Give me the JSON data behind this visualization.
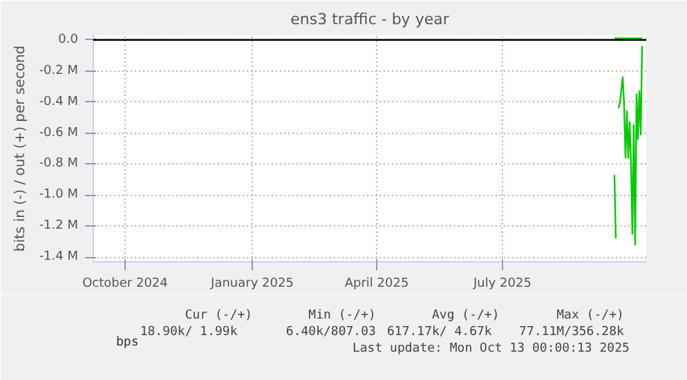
{
  "chart_data": {
    "type": "line",
    "title": "ens3 traffic - by year",
    "ylabel": "bits in (-) / out (+) per second",
    "xlim": [
      "2024-09-08",
      "2025-10-13"
    ],
    "xticks": [
      {
        "value": "2024-10-01",
        "label": "October 2024"
      },
      {
        "value": "2025-01-01",
        "label": "January 2025"
      },
      {
        "value": "2025-04-01",
        "label": "April 2025"
      },
      {
        "value": "2025-07-01",
        "label": "July 2025"
      }
    ],
    "ylim": [
      -1430000,
      30000
    ],
    "yticks": [
      {
        "value": 0,
        "label": "0.0"
      },
      {
        "value": -200000,
        "label": "-0.2 M"
      },
      {
        "value": -400000,
        "label": "-0.4 M"
      },
      {
        "value": -600000,
        "label": "-0.6 M"
      },
      {
        "value": -800000,
        "label": "-0.8 M"
      },
      {
        "value": -1000000,
        "label": "-1.0 M"
      },
      {
        "value": -1200000,
        "label": "-1.2 M"
      },
      {
        "value": -1400000,
        "label": "-1.4 M"
      }
    ],
    "grid": true,
    "legend": "bottom left",
    "series": [
      {
        "name": "bps",
        "color": "#00cc00",
        "x": [
          "2025-09-20",
          "2025-09-21",
          "2025-09-22",
          "2025-09-23",
          "2025-09-24",
          "2025-09-26",
          "2025-09-27",
          "2025-09-28",
          "2025-09-29",
          "2025-09-30",
          "2025-10-01",
          "2025-10-02",
          "2025-10-03",
          "2025-10-04",
          "2025-10-05",
          "2025-10-06",
          "2025-10-07",
          "2025-10-08",
          "2025-10-09",
          "2025-10-10"
        ],
        "values": [
          -870000,
          -1280000,
          null,
          -440000,
          -400000,
          -240000,
          -420000,
          -760000,
          -460000,
          -760000,
          -530000,
          -790000,
          -1250000,
          -550000,
          -1320000,
          -350000,
          -640000,
          -330000,
          -610000,
          -40000
        ]
      },
      {
        "color": "#00cc00",
        "x": [
          "2025-09-20",
          "2025-09-22",
          "2025-09-24",
          "2025-09-26",
          "2025-09-28",
          "2025-09-30",
          "2025-10-02",
          "2025-10-04",
          "2025-10-06",
          "2025-10-08",
          "2025-10-10"
        ],
        "values": [
          10000,
          10000,
          10000,
          10000,
          10000,
          10000,
          10000,
          10000,
          10000,
          10000,
          10000
        ]
      }
    ],
    "ref_lines": [
      {
        "axis": "y",
        "value": 0,
        "color": "#000000"
      }
    ],
    "annotations": [
      "Cur (-/+)",
      "Min (-/+)",
      "Avg (-/+)",
      "Max (-/+)",
      "18.90k/   1.99k",
      "6.40k/807.03",
      "617.17k/  4.67k",
      "77.11M/356.28k",
      "Last update: Mon Oct 13 00:00:13 2025"
    ]
  }
}
